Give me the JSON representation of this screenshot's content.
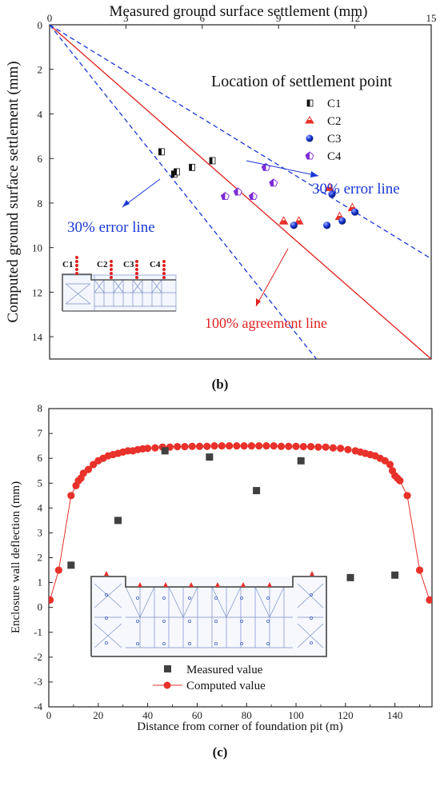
{
  "chart_data": [
    {
      "panel": "b",
      "type": "scatter",
      "xlabel": "Measured ground surface settlement (mm)",
      "ylabel": "Computed ground surface settlement (mm)",
      "xlim": [
        0,
        15
      ],
      "ylim": [
        0,
        15
      ],
      "x_ticks": [
        "0",
        "3",
        "6",
        "9",
        "12",
        "15"
      ],
      "y_ticks": [
        "0",
        "2",
        "4",
        "6",
        "8",
        "10",
        "12",
        "14"
      ],
      "legend_title": "Location of settlement point",
      "legend_position": "top-right",
      "series": [
        {
          "name": "C1",
          "marker": "half-square",
          "color": "#111111",
          "points": [
            [
              4.4,
              5.7
            ],
            [
              4.9,
              6.7
            ],
            [
              5.0,
              6.6
            ],
            [
              5.6,
              6.4
            ],
            [
              6.4,
              6.1
            ]
          ]
        },
        {
          "name": "C2",
          "marker": "triangle",
          "color": "#e8312a",
          "points": [
            [
              9.2,
              8.8
            ],
            [
              9.8,
              8.8
            ],
            [
              11.0,
              7.3
            ],
            [
              11.4,
              8.6
            ],
            [
              11.9,
              8.2
            ]
          ]
        },
        {
          "name": "C3",
          "marker": "sphere",
          "color": "#1a37d6",
          "points": [
            [
              9.6,
              9.0
            ],
            [
              10.9,
              9.0
            ],
            [
              11.1,
              7.6
            ],
            [
              11.5,
              8.8
            ],
            [
              12.0,
              8.4
            ]
          ]
        },
        {
          "name": "C4",
          "marker": "pentagon",
          "color": "#7d2bd6",
          "points": [
            [
              6.9,
              7.7
            ],
            [
              7.4,
              7.5
            ],
            [
              8.0,
              7.7
            ],
            [
              8.5,
              6.4
            ],
            [
              8.8,
              7.1
            ]
          ]
        }
      ],
      "reference_lines": [
        {
          "label": "100% agreement line",
          "color": "#e02020",
          "style": "solid",
          "slope": 1.0
        },
        {
          "label": "30% error line",
          "color": "#1a37d6",
          "style": "dashed",
          "slope": 1.43
        },
        {
          "label": "30% error line",
          "color": "#1a37d6",
          "style": "dashed",
          "slope": 0.7
        }
      ],
      "inset_labels": [
        "C1",
        "C2",
        "C3",
        "C4"
      ],
      "caption": "(b)"
    },
    {
      "panel": "c",
      "type": "scatter",
      "xlabel": "Distance from corner of foundation pit (m)",
      "ylabel": "Enclosure wall deflection (mm)",
      "xlim": [
        0,
        155
      ],
      "ylim": [
        -4,
        8
      ],
      "x_ticks": [
        "0",
        "20",
        "40",
        "60",
        "80",
        "100",
        "120",
        "140"
      ],
      "y_ticks": [
        "-4",
        "-3",
        "-2",
        "-1",
        "0",
        "1",
        "2",
        "3",
        "4",
        "5",
        "6",
        "7",
        "8"
      ],
      "legend_position": "bottom-center",
      "series": [
        {
          "name": "Measured value",
          "marker": "square",
          "color": "#404040",
          "points": [
            [
              9,
              1.7
            ],
            [
              28,
              3.5
            ],
            [
              47,
              6.3
            ],
            [
              65,
              6.05
            ],
            [
              84,
              4.7
            ],
            [
              102,
              5.9
            ],
            [
              122,
              1.2
            ],
            [
              140,
              1.3
            ]
          ]
        },
        {
          "name": "Computed value",
          "marker": "circle-line",
          "color": "#e8312a",
          "points": [
            [
              0.5,
              0.3
            ],
            [
              4,
              1.5
            ],
            [
              9,
              4.5
            ],
            [
              11,
              4.9
            ],
            [
              12,
              5.1
            ],
            [
              13,
              5.2
            ],
            [
              14,
              5.4
            ],
            [
              16,
              5.55
            ],
            [
              18,
              5.75
            ],
            [
              20,
              5.9
            ],
            [
              22,
              6.0
            ],
            [
              24,
              6.1
            ],
            [
              26,
              6.15
            ],
            [
              28,
              6.2
            ],
            [
              30,
              6.25
            ],
            [
              32,
              6.3
            ],
            [
              34,
              6.3
            ],
            [
              36,
              6.35
            ],
            [
              38,
              6.38
            ],
            [
              40,
              6.4
            ],
            [
              43,
              6.42
            ],
            [
              46,
              6.45
            ],
            [
              49,
              6.45
            ],
            [
              52,
              6.47
            ],
            [
              55,
              6.47
            ],
            [
              58,
              6.48
            ],
            [
              61,
              6.48
            ],
            [
              64,
              6.48
            ],
            [
              67,
              6.5
            ],
            [
              70,
              6.5
            ],
            [
              73,
              6.5
            ],
            [
              76,
              6.5
            ],
            [
              79,
              6.5
            ],
            [
              82,
              6.5
            ],
            [
              85,
              6.5
            ],
            [
              88,
              6.5
            ],
            [
              91,
              6.5
            ],
            [
              94,
              6.48
            ],
            [
              97,
              6.48
            ],
            [
              100,
              6.48
            ],
            [
              103,
              6.47
            ],
            [
              106,
              6.47
            ],
            [
              109,
              6.45
            ],
            [
              112,
              6.45
            ],
            [
              115,
              6.42
            ],
            [
              118,
              6.4
            ],
            [
              121,
              6.35
            ],
            [
              124,
              6.3
            ],
            [
              126,
              6.25
            ],
            [
              128,
              6.2
            ],
            [
              130,
              6.15
            ],
            [
              132,
              6.1
            ],
            [
              134,
              6.0
            ],
            [
              136,
              5.9
            ],
            [
              138,
              5.75
            ],
            [
              139,
              5.5
            ],
            [
              140,
              5.3
            ],
            [
              141,
              5.2
            ],
            [
              142,
              5.1
            ],
            [
              145,
              4.5
            ],
            [
              150,
              1.5
            ],
            [
              154,
              0.3
            ]
          ]
        }
      ],
      "caption": "(c)"
    }
  ]
}
